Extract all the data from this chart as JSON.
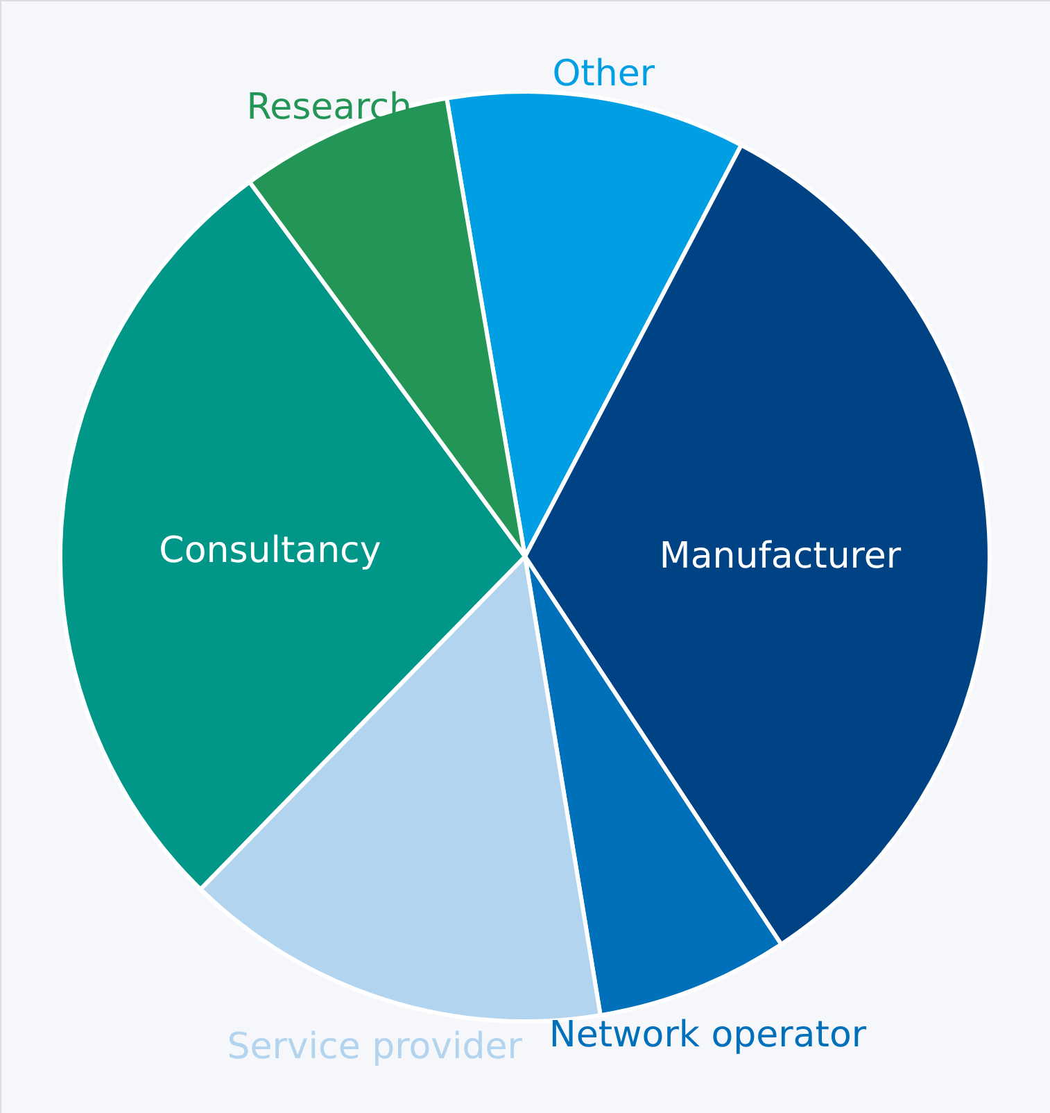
{
  "chart_data": {
    "type": "pie",
    "categories": [
      "Other",
      "Manufacturer",
      "Network operator",
      "Service provider",
      "Consultancy",
      "Research"
    ],
    "values": [
      10.4,
      33.0,
      6.7,
      14.9,
      27.6,
      7.4
    ],
    "colors": [
      "#009fe3",
      "#004385",
      "#0070bb",
      "#b3d4ef",
      "#009688",
      "#239657"
    ]
  }
}
